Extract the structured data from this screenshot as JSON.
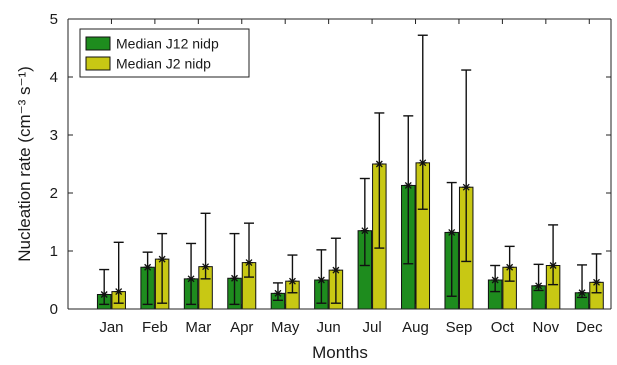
{
  "chart_data": {
    "type": "bar",
    "categories": [
      "Jan",
      "Feb",
      "Mar",
      "Apr",
      "May",
      "Jun",
      "Jul",
      "Aug",
      "Sep",
      "Oct",
      "Nov",
      "Dec"
    ],
    "series": [
      {
        "name": "Median J12 nidp",
        "color": "#1e8c1e",
        "values": [
          0.25,
          0.72,
          0.52,
          0.53,
          0.27,
          0.5,
          1.35,
          2.13,
          1.32,
          0.5,
          0.4,
          0.28
        ],
        "err_low": [
          0.08,
          0.08,
          0.08,
          0.08,
          0.15,
          0.1,
          0.75,
          0.78,
          0.22,
          0.3,
          0.32,
          0.2
        ],
        "err_high": [
          0.68,
          0.98,
          1.13,
          1.3,
          0.45,
          1.02,
          2.25,
          3.33,
          2.18,
          0.75,
          0.77,
          0.76
        ]
      },
      {
        "name": "Median J2 nidp",
        "color": "#c8c814",
        "values": [
          0.3,
          0.86,
          0.73,
          0.8,
          0.48,
          0.67,
          2.5,
          2.52,
          2.1,
          0.72,
          0.75,
          0.46
        ],
        "err_low": [
          0.1,
          0.1,
          0.52,
          0.55,
          0.28,
          0.1,
          1.05,
          1.72,
          0.82,
          0.48,
          0.42,
          0.28
        ],
        "err_high": [
          1.15,
          1.3,
          1.65,
          1.48,
          0.93,
          1.22,
          3.38,
          4.72,
          4.12,
          1.08,
          1.45,
          0.95
        ]
      }
    ],
    "xlabel": "Months",
    "ylabel": "Nucleation rate (cm⁻³ s⁻¹)",
    "ylim": [
      0,
      5
    ],
    "yticks": [
      0,
      1,
      2,
      3,
      4,
      5
    ],
    "grid": false,
    "legend": "top-left"
  }
}
